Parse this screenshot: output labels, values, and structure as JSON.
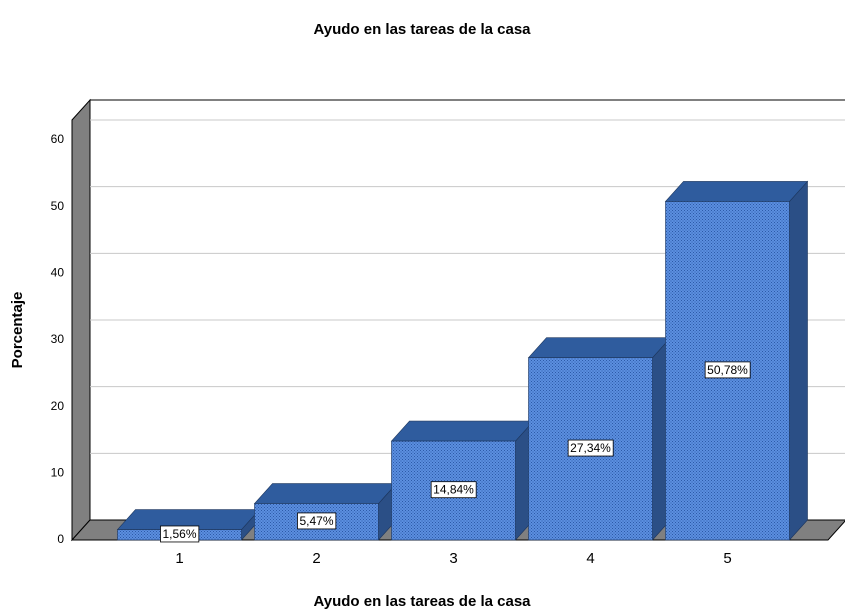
{
  "chart_data": {
    "type": "bar3d",
    "title": "Ayudo en las tareas de la casa",
    "x_label": "Ayudo en las tareas de la casa",
    "y_label": "Porcentaje",
    "categories": [
      "1",
      "2",
      "3",
      "4",
      "5"
    ],
    "values": [
      1.56,
      5.47,
      14.84,
      27.34,
      50.78
    ],
    "value_labels": [
      "1,56%",
      "5,47%",
      "14,84%",
      "27,34%",
      "50,78%"
    ],
    "color": "#4a7fd0",
    "ylim": [
      0,
      63
    ],
    "yticks": [
      0,
      10,
      20,
      30,
      40,
      50,
      60
    ],
    "grid": true
  }
}
